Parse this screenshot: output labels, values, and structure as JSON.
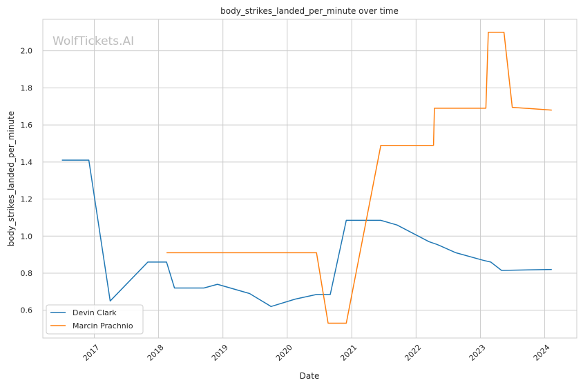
{
  "chart_data": {
    "type": "line",
    "title": "body_strikes_landed_per_minute over time",
    "xlabel": "Date",
    "ylabel": "body_strikes_landed_per_minute",
    "watermark": "WolfTickets.AI",
    "grid": true,
    "legend_position": "bottom-left",
    "xlim": [
      "2016-03-15",
      "2024-07-01"
    ],
    "ylim": [
      0.45,
      2.17
    ],
    "x_ticks": [
      "2017-01-01",
      "2018-01-01",
      "2019-01-01",
      "2020-01-01",
      "2021-01-01",
      "2022-01-01",
      "2023-01-01",
      "2024-01-01"
    ],
    "x_tick_labels": [
      "2017",
      "2018",
      "2019",
      "2020",
      "2021",
      "2022",
      "2023",
      "2024"
    ],
    "y_ticks": [
      0.6,
      0.8,
      1.0,
      1.2,
      1.4,
      1.6,
      1.8,
      2.0
    ],
    "y_tick_labels": [
      "0.6",
      "0.8",
      "1.0",
      "1.2",
      "1.4",
      "1.6",
      "1.8",
      "2.0"
    ],
    "series": [
      {
        "name": "Devin Clark",
        "color": "#1f77b4",
        "x": [
          "2016-07-01",
          "2016-12-01",
          "2017-04-01",
          "2017-11-01",
          "2018-02-15",
          "2018-04-01",
          "2018-09-15",
          "2018-12-01",
          "2019-06-01",
          "2019-10-01",
          "2020-02-15",
          "2020-06-15",
          "2020-09-01",
          "2020-12-01",
          "2021-06-15",
          "2021-09-15",
          "2022-03-15",
          "2022-05-01",
          "2022-08-15",
          "2023-01-15",
          "2023-03-01",
          "2023-05-01",
          "2024-02-10"
        ],
        "values": [
          1.41,
          1.41,
          0.65,
          0.86,
          0.86,
          0.72,
          0.72,
          0.74,
          0.69,
          0.62,
          0.66,
          0.685,
          0.685,
          1.085,
          1.085,
          1.06,
          0.97,
          0.955,
          0.91,
          0.87,
          0.86,
          0.815,
          0.82
        ]
      },
      {
        "name": "Marcin Prachnio",
        "color": "#ff7f0e",
        "x": [
          "2018-02-15",
          "2020-06-15",
          "2020-08-20",
          "2020-12-01",
          "2021-06-15",
          "2022-04-10",
          "2022-04-15",
          "2023-02-01",
          "2023-02-15",
          "2023-05-15",
          "2023-07-01",
          "2024-02-10"
        ],
        "values": [
          0.91,
          0.91,
          0.53,
          0.53,
          1.49,
          1.49,
          1.69,
          1.69,
          2.1,
          2.1,
          1.695,
          1.68
        ]
      }
    ]
  }
}
